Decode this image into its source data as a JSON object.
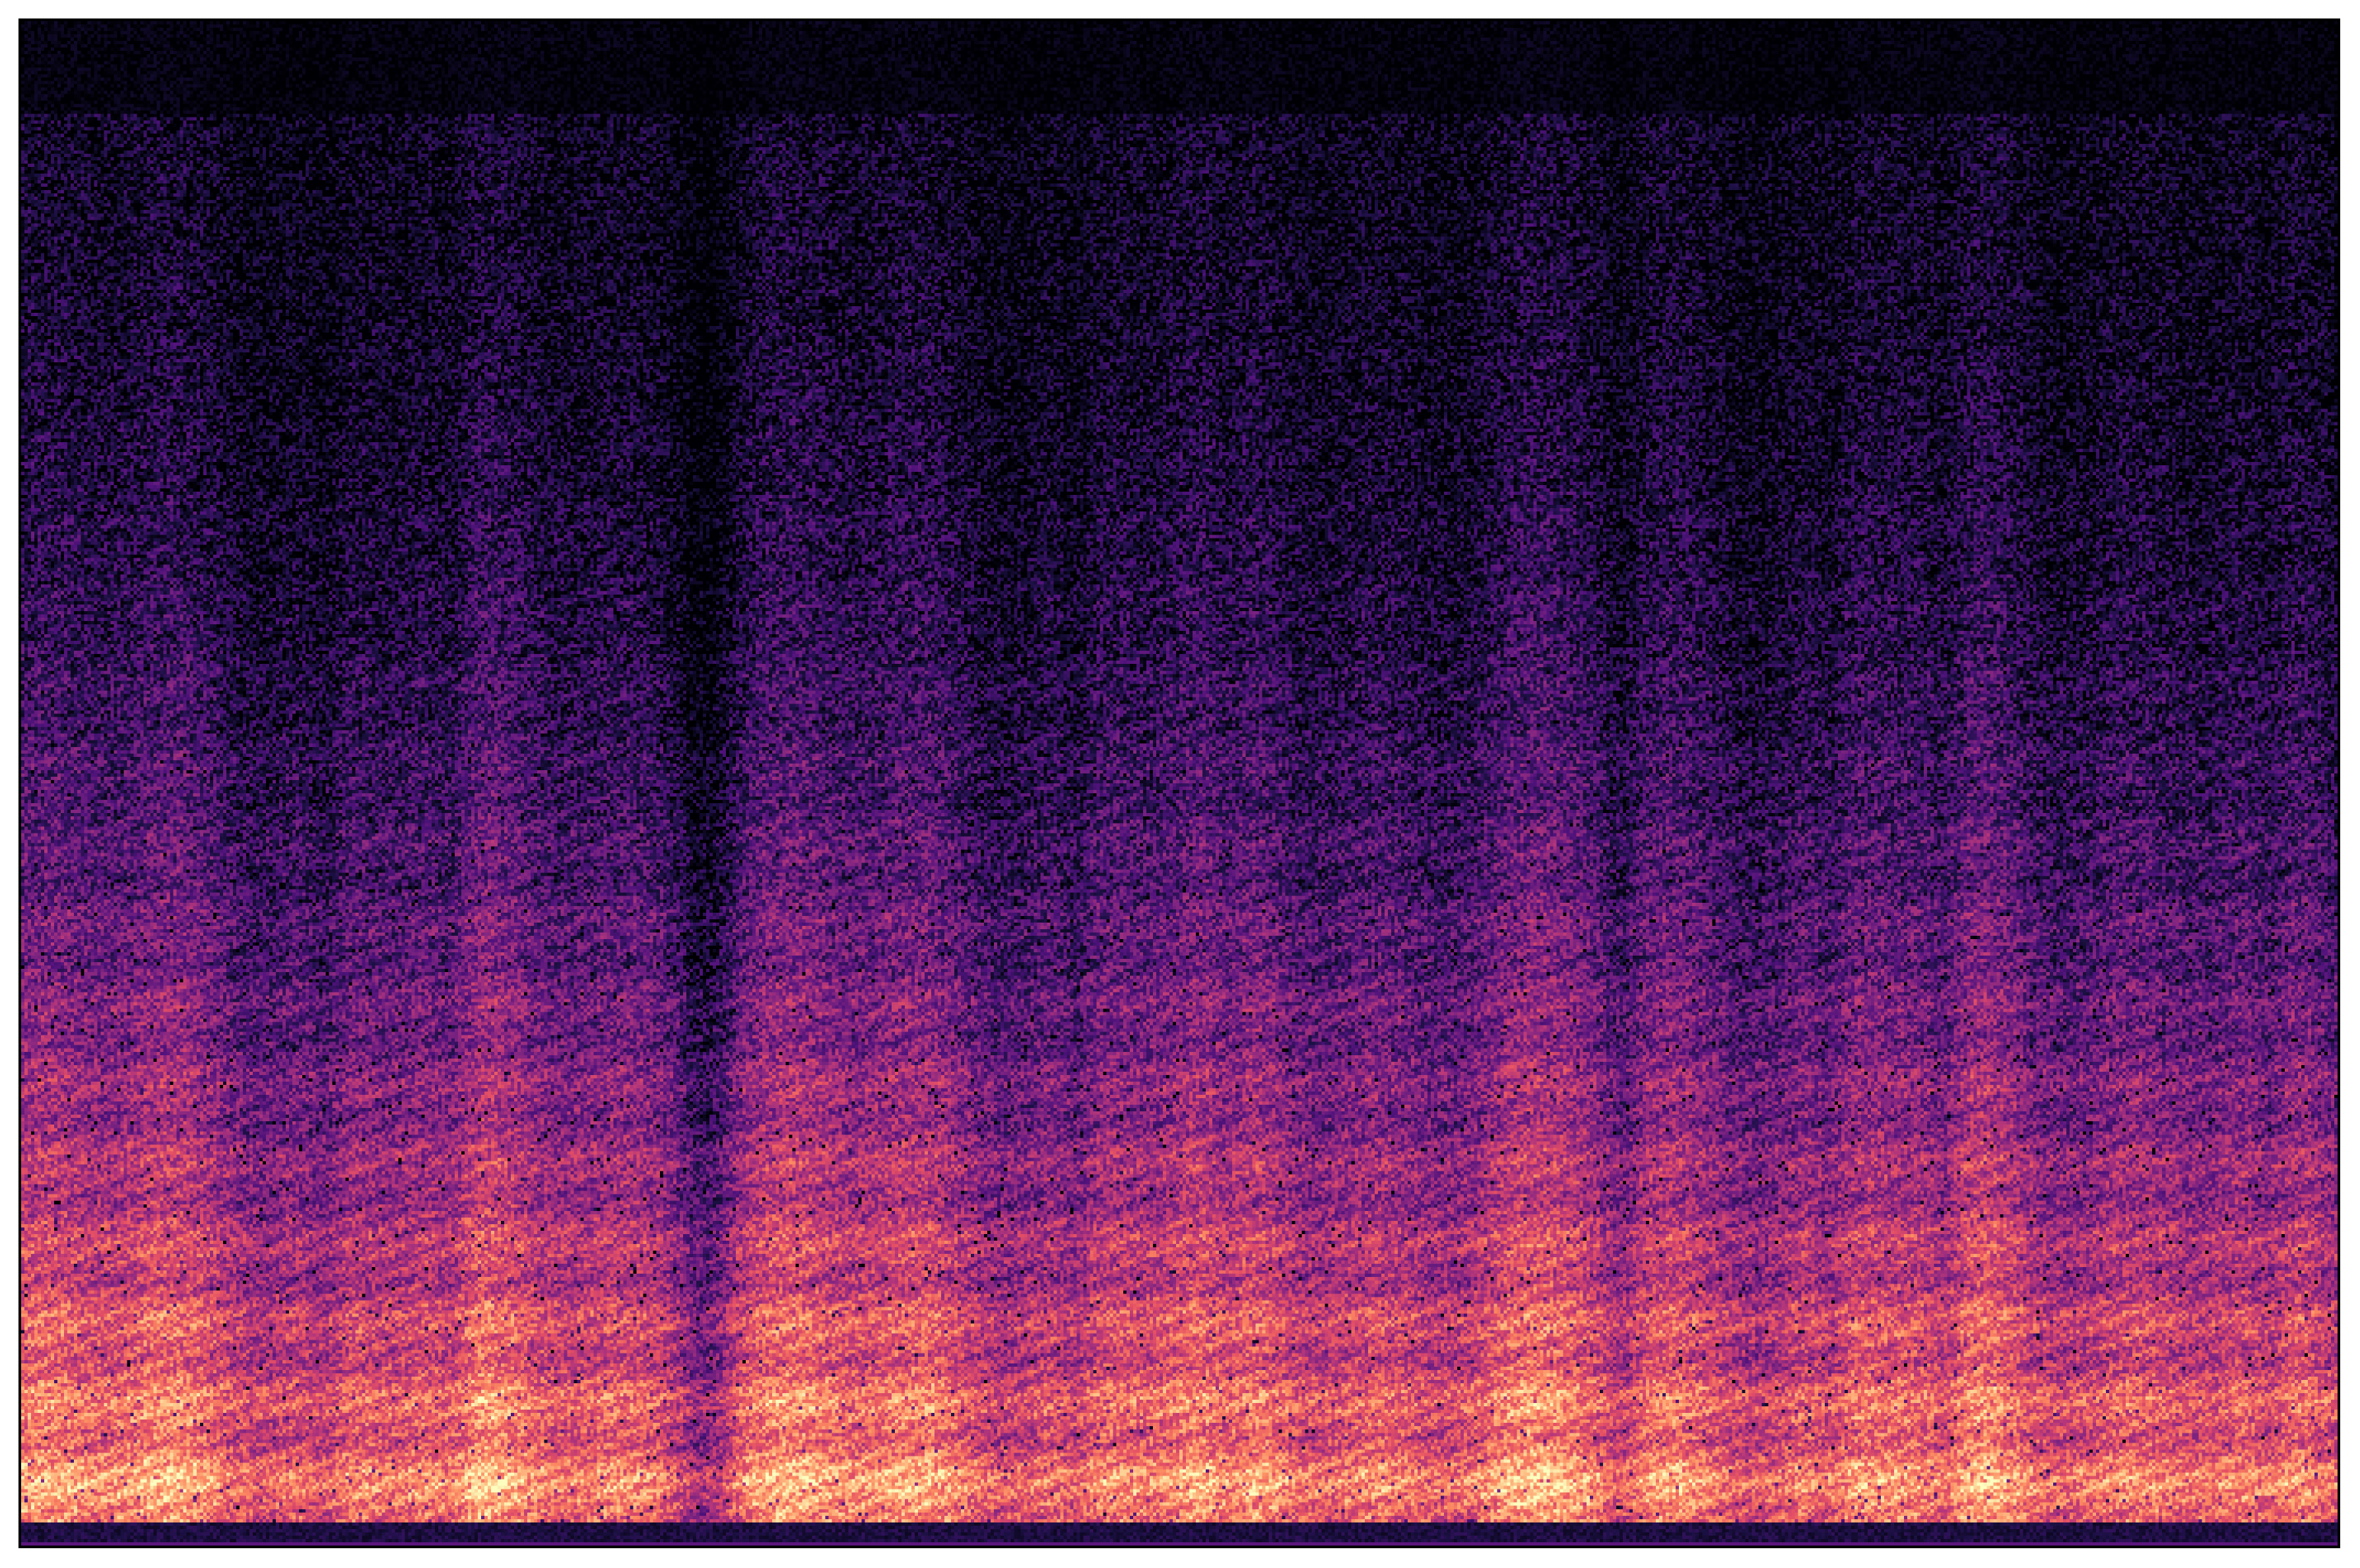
{
  "chart_data": {
    "type": "heatmap",
    "subtype": "spectrogram",
    "colormap": "magma",
    "title": "",
    "xlabel": "",
    "ylabel": "",
    "axes_visible": false,
    "ticks_visible": false,
    "grid": false,
    "legend": "none",
    "colorbar": false,
    "colors": {
      "low": "#000004",
      "mid": "#b73779",
      "high": "#fcfdbf",
      "frame": "#000000",
      "background": "#ffffff"
    }
  }
}
